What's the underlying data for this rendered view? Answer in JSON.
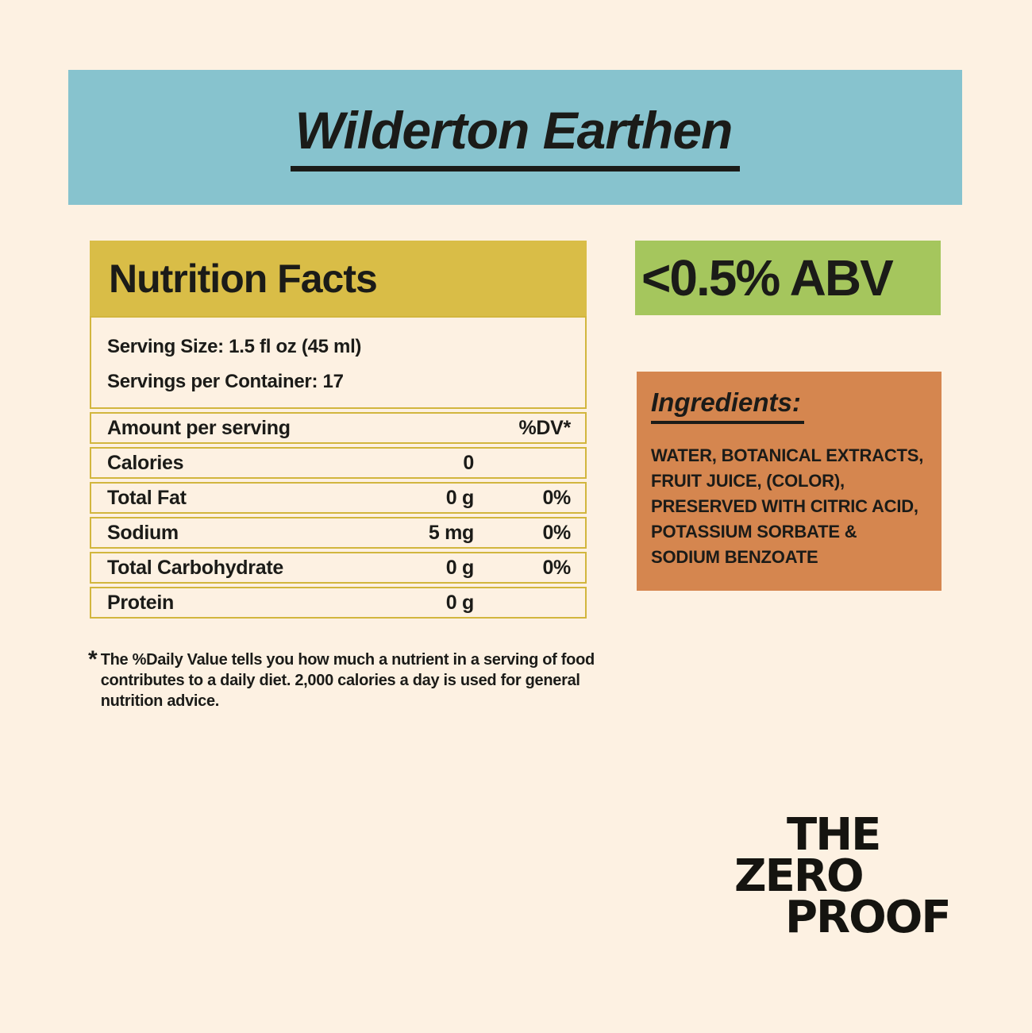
{
  "page": {
    "background": "#fdf1e2",
    "text_color": "#1b1b18"
  },
  "banner": {
    "title": "Wilderton Earthen",
    "bg_color": "#87c3ce"
  },
  "nutrition": {
    "title": "Nutrition Facts",
    "header_bg": "#d9bd47",
    "border_color": "#d2b63e",
    "serving_size": "Serving Size: 1.5 fl oz (45 ml)",
    "servings_per_container": "Servings per Container: 17",
    "columns": {
      "amount": "Amount per serving",
      "dv": "%DV*"
    },
    "rows": [
      {
        "label": "Calories",
        "value": "0",
        "dv": ""
      },
      {
        "label": "Total Fat",
        "value": "0 g",
        "dv": "0%"
      },
      {
        "label": "Sodium",
        "value": "5 mg",
        "dv": "0%"
      },
      {
        "label": "Total Carbohydrate",
        "value": "0 g",
        "dv": "0%"
      },
      {
        "label": "Protein",
        "value": "0 g",
        "dv": ""
      }
    ],
    "footnote": {
      "asterisk": "*",
      "lines": [
        "The %Daily Value tells you how much a nutrient in a serving of food",
        "contributes to a daily diet. 2,000 calories a day is used for general",
        "nutrition advice."
      ]
    }
  },
  "abv": {
    "label": "<0.5% ABV",
    "bg_color": "#a5c65d"
  },
  "ingredients": {
    "title": "Ingredients:",
    "bg_color": "#d5864f",
    "lines": [
      "WATER, BOTANICAL EXTRACTS,",
      "FRUIT JUICE, (COLOR),",
      "PRESERVED WITH CITRIC ACID,",
      "POTASSIUM SORBATE &",
      "SODIUM BENZOATE"
    ]
  },
  "logo": {
    "line1": "THE",
    "line2": "ZERO",
    "line3": "PROOF"
  }
}
